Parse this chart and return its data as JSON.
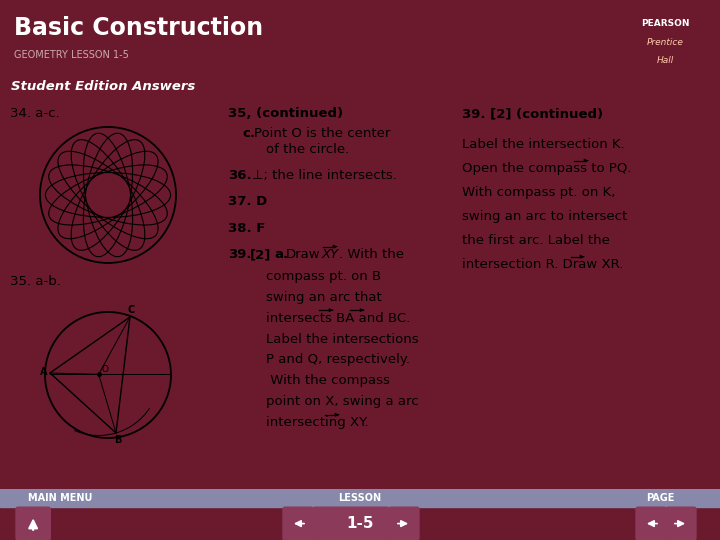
{
  "title": "Basic Construction",
  "subtitle": "GEOMETRY LESSON 1-5",
  "section_label": "Student Edition Answers",
  "header_bg": "#6b1a2e",
  "section_bg": "#8888aa",
  "footer_bg": "#6b1a2e",
  "nav_btn_color": "#8b3a5a",
  "page_label": "1-5",
  "body_bg": "#ffffff",
  "text_color": "#000000",
  "col1_label": "34. a-c.",
  "col2_label": "35. a-b.",
  "col2_heading": "35, (continued)",
  "col3_heading": "39. [2] (continued)",
  "pearson_box_color": "#8b1a2e"
}
